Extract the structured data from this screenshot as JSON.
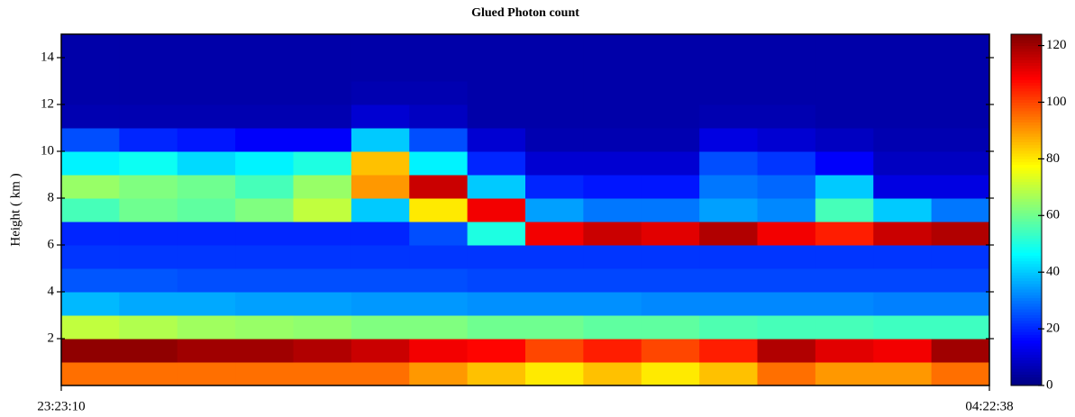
{
  "chart_data": {
    "type": "heatmap",
    "title": "Glued Photon count",
    "y_label": "Height ( km )",
    "xticks": [
      "23:23:10",
      "04:22:38"
    ],
    "ylim": [
      0,
      15
    ],
    "yticks": [
      2,
      4,
      6,
      8,
      10,
      12,
      14
    ],
    "clim": [
      0,
      124
    ],
    "cticks": [
      0,
      20,
      40,
      60,
      80,
      100,
      120
    ],
    "colormap": "jet",
    "z": [
      [
        95,
        95,
        95,
        95,
        95,
        95,
        90,
        85,
        80,
        85,
        80,
        85,
        95,
        90,
        90,
        95
      ],
      [
        122,
        122,
        120,
        120,
        118,
        115,
        110,
        108,
        100,
        105,
        100,
        105,
        118,
        112,
        110,
        120
      ],
      [
        70,
        68,
        66,
        65,
        64,
        62,
        62,
        60,
        60,
        58,
        58,
        56,
        55,
        55,
        54,
        54
      ],
      [
        38,
        36,
        36,
        35,
        35,
        34,
        34,
        33,
        33,
        33,
        32,
        32,
        32,
        32,
        31,
        31
      ],
      [
        26,
        26,
        25,
        25,
        25,
        25,
        25,
        24,
        24,
        24,
        24,
        24,
        24,
        24,
        24,
        24
      ],
      [
        22,
        22,
        22,
        22,
        22,
        22,
        22,
        22,
        22,
        22,
        22,
        22,
        22,
        22,
        22,
        22
      ],
      [
        20,
        20,
        20,
        20,
        20,
        20,
        25,
        50,
        110,
        115,
        112,
        118,
        110,
        105,
        115,
        118
      ],
      [
        55,
        60,
        58,
        62,
        70,
        40,
        80,
        110,
        35,
        30,
        30,
        35,
        32,
        55,
        40,
        30
      ],
      [
        65,
        62,
        60,
        55,
        65,
        90,
        115,
        40,
        20,
        18,
        18,
        30,
        28,
        40,
        12,
        12
      ],
      [
        45,
        48,
        42,
        45,
        50,
        85,
        45,
        20,
        10,
        10,
        10,
        25,
        22,
        15,
        8,
        8
      ],
      [
        25,
        20,
        18,
        15,
        15,
        40,
        25,
        10,
        6,
        6,
        6,
        12,
        10,
        8,
        6,
        6
      ],
      [
        6,
        6,
        6,
        6,
        6,
        10,
        8,
        5,
        5,
        5,
        5,
        6,
        6,
        5,
        5,
        5
      ],
      [
        5,
        5,
        5,
        5,
        5,
        6,
        6,
        5,
        5,
        5,
        5,
        5,
        5,
        5,
        5,
        5
      ],
      [
        5,
        5,
        5,
        5,
        5,
        5,
        5,
        5,
        5,
        5,
        5,
        5,
        5,
        5,
        5,
        5
      ],
      [
        5,
        5,
        5,
        5,
        5,
        5,
        5,
        5,
        5,
        5,
        5,
        5,
        5,
        5,
        5,
        5
      ]
    ]
  }
}
